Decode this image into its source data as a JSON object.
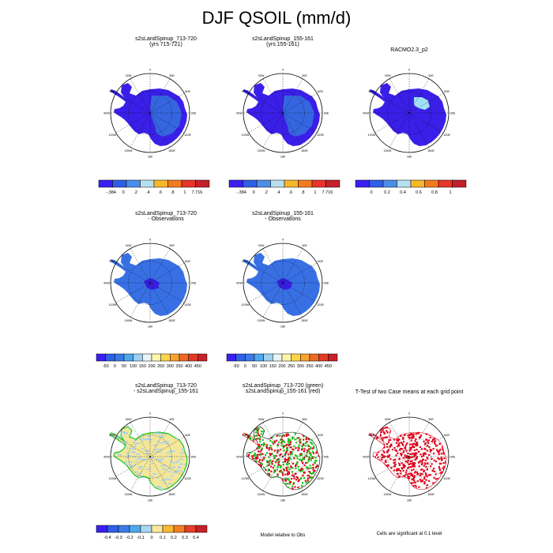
{
  "title": "DJF QSOIL (mm/d)",
  "panels": [
    {
      "id": "p1",
      "title1": "s2sLandSpinup_713-720",
      "title2": "(yrs 715-721)",
      "variant": "model"
    },
    {
      "id": "p2",
      "title1": "s2sLandSpinup_155-161",
      "title2": "(yrs 155-161)",
      "variant": "model"
    },
    {
      "id": "p3",
      "title1": "RACMO2.3_p2",
      "title2": "",
      "variant": "obs"
    },
    {
      "id": "p4",
      "title1": "s2sLandSpinup_713-720",
      "title2": "- Observations",
      "variant": "bias"
    },
    {
      "id": "p5",
      "title1": "s2sLandSpinup_155-161",
      "title2": "- Observations",
      "variant": "bias"
    },
    {
      "id": "p6",
      "title1": "s2sLandSpinup_713-720",
      "title2": "- s2sLandSpinup_155-161",
      "variant": "diff"
    },
    {
      "id": "p7",
      "title1": "s2sLandSpinup_713-720 (green)",
      "title2": "s2sLandSpinup_155-161 (red)",
      "variant": "greenred"
    },
    {
      "id": "p8",
      "title1": "T-Test of two Case means at each grid point",
      "title2": "",
      "variant": "ttest"
    }
  ],
  "map_labels": {
    "top": "0",
    "bottom": "180",
    "left": "90W",
    "right": "90E",
    "nw": "60W",
    "ne": "60E",
    "nnw": "30W",
    "nne": "30E",
    "sw": "120W",
    "se": "120E",
    "ssw": "150W",
    "sse": "150E"
  },
  "colorbars": {
    "cb_model": {
      "labels": [
        "-.384",
        "0",
        ".2",
        ".4",
        ".6",
        ".8",
        "1",
        "7.716"
      ],
      "colors": [
        "#3b1ff2",
        "#2e5fe6",
        "#4a8ee8",
        "#b8dff0",
        "#f7b72b",
        "#f27b1f",
        "#e8342a",
        "#c4202a"
      ]
    },
    "cb_obs": {
      "labels": [
        "0",
        "0.2",
        "0.4",
        "0.6",
        "0.8",
        "1"
      ],
      "colors": [
        "#3b1ff2",
        "#2e5fe6",
        "#4a8ee8",
        "#b8dff0",
        "#f7b72b",
        "#f27b1f",
        "#e8342a",
        "#c4202a"
      ]
    },
    "cb_bias": {
      "labels": [
        "-50",
        "0",
        "50",
        "100",
        "150",
        "200",
        "250",
        "300",
        "350",
        "400",
        "450"
      ],
      "colors": [
        "#3b1ff2",
        "#2e5fe6",
        "#3a7ae8",
        "#50a8ec",
        "#9fd0f2",
        "#e8f4f8",
        "#fff6a8",
        "#fcd34a",
        "#f8a230",
        "#f06a23",
        "#e33a24",
        "#c9212a"
      ]
    },
    "cb_diff": {
      "labels": [
        "-0.4",
        "-0.3",
        "-0.2",
        "-0.1",
        "0",
        "0.1",
        "0.2",
        "0.3",
        "0.4"
      ],
      "colors": [
        "#3b1ff2",
        "#2e5fe6",
        "#3a7ae8",
        "#50a8ec",
        "#a9d6f2",
        "#fbe89a",
        "#f8b935",
        "#f27f22",
        "#e6402a",
        "#c8202a"
      ]
    }
  },
  "notes": {
    "greenred": "Model relative to Obs",
    "ttest": "Cells are significant at 0.1 level"
  },
  "colors": {
    "ocean": "#ffffff",
    "model_fill": "#3a1fe8",
    "model_interior": "#3566e0",
    "obs_fill": "#3a1fe8",
    "obs_spot": "#9fe0f4",
    "bias_fill": "#3870e4",
    "bias_spot": "#3a1fe8",
    "diff_fill": "#f4e79a",
    "diff_spot": "#a9d0ef",
    "green": "#14c814",
    "red": "#e8001a"
  }
}
